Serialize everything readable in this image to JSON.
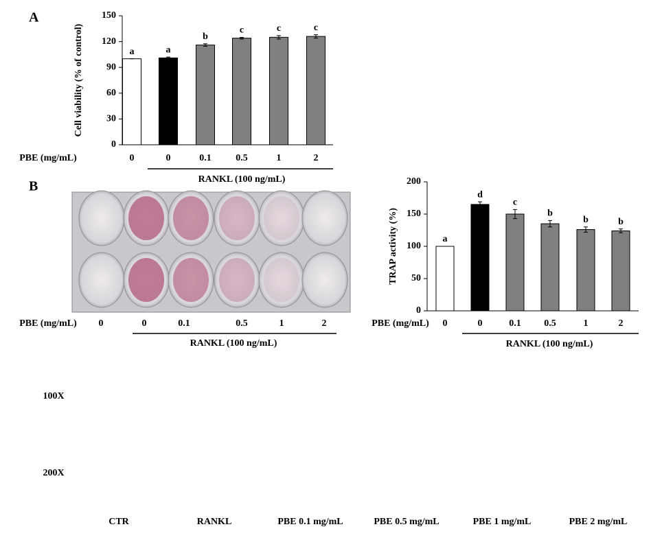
{
  "panel_labels": [
    "A",
    "B"
  ],
  "chart_data": [
    {
      "type": "bar",
      "y_label": "Cell viability (% of control)",
      "x_label": "PBE (mg/mL)",
      "group_label": "RANKL (100 ng/mL)",
      "categories": [
        "0",
        "0",
        "0.1",
        "0.5",
        "1",
        "2"
      ],
      "values": [
        100,
        101,
        116,
        124,
        125,
        126
      ],
      "errors": [
        0,
        1,
        1.5,
        1,
        2,
        2
      ],
      "annotations": [
        "a",
        "a",
        "b",
        "c",
        "c",
        "c"
      ],
      "colors": [
        "#ffffff",
        "#000000",
        "#808080",
        "#808080",
        "#808080",
        "#808080"
      ],
      "ylim": [
        0,
        150
      ],
      "yticks": [
        0,
        30,
        60,
        90,
        120,
        150
      ]
    },
    {
      "type": "bar",
      "y_label": "TRAP activity (%)",
      "x_label": "PBE (mg/mL)",
      "group_label": "RANKL (100 ng/mL)",
      "categories": [
        "0",
        "0",
        "0.1",
        "0.5",
        "1",
        "2"
      ],
      "values": [
        100,
        165,
        150,
        135,
        126,
        124
      ],
      "errors": [
        0,
        4,
        7,
        5,
        4,
        3
      ],
      "annotations": [
        "a",
        "d",
        "c",
        "b",
        "b",
        "b"
      ],
      "colors": [
        "#ffffff",
        "#000000",
        "#808080",
        "#808080",
        "#808080",
        "#808080"
      ],
      "ylim": [
        0,
        200
      ],
      "yticks": [
        0,
        50,
        100,
        150,
        200
      ]
    }
  ],
  "plate": {
    "x_label": "PBE (mg/mL)",
    "categories": [
      "0",
      "0",
      "0.1",
      "0.5",
      "1",
      "2"
    ],
    "group_label": "RANKL (100 ng/mL)"
  },
  "micrographs": {
    "rows": [
      "100X",
      "200X"
    ],
    "columns": [
      "CTR",
      "RANKL",
      "PBE 0.1 mg/mL",
      "PBE 0.5 mg/mL",
      "PBE 1 mg/mL",
      "PBE 2 mg/mL"
    ]
  }
}
